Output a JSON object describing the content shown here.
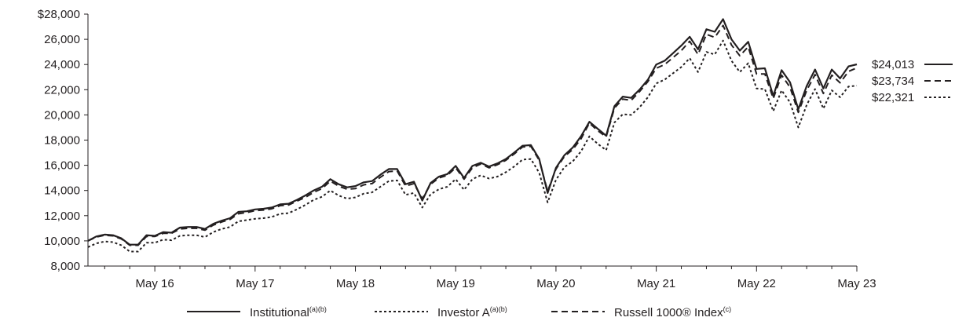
{
  "chart_data": {
    "type": "line",
    "title": "",
    "xlabel": "",
    "ylabel": "",
    "ylim": [
      8000,
      28000
    ],
    "y_ticks": [
      8000,
      10000,
      12000,
      14000,
      16000,
      18000,
      20000,
      22000,
      24000,
      26000,
      28000
    ],
    "y_tick_labels": [
      "8,000",
      "10,000",
      "12,000",
      "14,000",
      "16,000",
      "18,000",
      "20,000",
      "22,000",
      "24,000",
      "26,000",
      "$28,000"
    ],
    "x_tick_labels": [
      "May 16",
      "May 17",
      "May 18",
      "May 19",
      "May 20",
      "May 21",
      "May 22",
      "May 23"
    ],
    "x_tick_positions": [
      12,
      24,
      36,
      48,
      60,
      72,
      84,
      96
    ],
    "x_range_months": [
      4,
      96
    ],
    "grid": false,
    "legend_placement": "bottom",
    "series": [
      {
        "name": "Institutional",
        "legend_sup": "(a)(b)",
        "style": "solid",
        "end_label": "$24,013",
        "values": [
          [
            4,
            10000
          ],
          [
            5,
            10350
          ],
          [
            6,
            10500
          ],
          [
            7,
            10450
          ],
          [
            8,
            10200
          ],
          [
            9,
            9700
          ],
          [
            10,
            9700
          ],
          [
            11,
            10450
          ],
          [
            12,
            10400
          ],
          [
            13,
            10700
          ],
          [
            14,
            10650
          ],
          [
            15,
            11050
          ],
          [
            16,
            11100
          ],
          [
            17,
            11100
          ],
          [
            18,
            10950
          ],
          [
            19,
            11350
          ],
          [
            20,
            11600
          ],
          [
            21,
            11800
          ],
          [
            22,
            12300
          ],
          [
            23,
            12350
          ],
          [
            24,
            12500
          ],
          [
            25,
            12550
          ],
          [
            26,
            12650
          ],
          [
            27,
            12900
          ],
          [
            28,
            12950
          ],
          [
            29,
            13250
          ],
          [
            30,
            13600
          ],
          [
            31,
            14000
          ],
          [
            32,
            14300
          ],
          [
            33,
            14900
          ],
          [
            34,
            14500
          ],
          [
            35,
            14250
          ],
          [
            36,
            14350
          ],
          [
            37,
            14650
          ],
          [
            38,
            14750
          ],
          [
            39,
            15250
          ],
          [
            40,
            15700
          ],
          [
            41,
            15700
          ],
          [
            42,
            14500
          ],
          [
            43,
            14700
          ],
          [
            44,
            13200
          ],
          [
            45,
            14600
          ],
          [
            46,
            15100
          ],
          [
            47,
            15300
          ],
          [
            48,
            15950
          ],
          [
            49,
            15000
          ],
          [
            50,
            15950
          ],
          [
            51,
            16200
          ],
          [
            52,
            15900
          ],
          [
            53,
            16150
          ],
          [
            54,
            16500
          ],
          [
            55,
            17000
          ],
          [
            56,
            17550
          ],
          [
            57,
            17600
          ],
          [
            58,
            16500
          ],
          [
            59,
            13800
          ],
          [
            60,
            15800
          ],
          [
            61,
            16800
          ],
          [
            62,
            17400
          ],
          [
            63,
            18300
          ],
          [
            64,
            19450
          ],
          [
            65,
            18900
          ],
          [
            66,
            18350
          ],
          [
            67,
            20700
          ],
          [
            68,
            21450
          ],
          [
            69,
            21350
          ],
          [
            70,
            22000
          ],
          [
            71,
            22800
          ],
          [
            72,
            24000
          ],
          [
            73,
            24300
          ],
          [
            74,
            24900
          ],
          [
            75,
            25500
          ],
          [
            76,
            26200
          ],
          [
            77,
            25200
          ],
          [
            78,
            26800
          ],
          [
            79,
            26600
          ],
          [
            80,
            27600
          ],
          [
            81,
            26000
          ],
          [
            82,
            25100
          ],
          [
            83,
            25800
          ],
          [
            84,
            23650
          ],
          [
            85,
            23700
          ],
          [
            86,
            21500
          ],
          [
            87,
            23550
          ],
          [
            88,
            22600
          ],
          [
            89,
            20450
          ],
          [
            90,
            22300
          ],
          [
            91,
            23600
          ],
          [
            92,
            22100
          ],
          [
            93,
            23600
          ],
          [
            94,
            22900
          ],
          [
            95,
            23850
          ],
          [
            96,
            24013
          ]
        ]
      },
      {
        "name": "Investor A",
        "legend_sup": "(a)(b)",
        "style": "dotted",
        "end_label": "$22,321",
        "values": [
          [
            4,
            9500
          ],
          [
            5,
            9800
          ],
          [
            6,
            9950
          ],
          [
            7,
            9900
          ],
          [
            8,
            9650
          ],
          [
            9,
            9150
          ],
          [
            10,
            9150
          ],
          [
            11,
            9850
          ],
          [
            12,
            9850
          ],
          [
            13,
            10100
          ],
          [
            14,
            10050
          ],
          [
            15,
            10400
          ],
          [
            16,
            10450
          ],
          [
            17,
            10450
          ],
          [
            18,
            10300
          ],
          [
            19,
            10700
          ],
          [
            20,
            10950
          ],
          [
            21,
            11100
          ],
          [
            22,
            11550
          ],
          [
            23,
            11650
          ],
          [
            24,
            11750
          ],
          [
            25,
            11800
          ],
          [
            26,
            11900
          ],
          [
            27,
            12150
          ],
          [
            28,
            12200
          ],
          [
            29,
            12500
          ],
          [
            30,
            12850
          ],
          [
            31,
            13250
          ],
          [
            32,
            13500
          ],
          [
            33,
            14000
          ],
          [
            34,
            13600
          ],
          [
            35,
            13350
          ],
          [
            36,
            13450
          ],
          [
            37,
            13750
          ],
          [
            38,
            13850
          ],
          [
            39,
            14300
          ],
          [
            40,
            14750
          ],
          [
            41,
            14800
          ],
          [
            42,
            13650
          ],
          [
            43,
            13800
          ],
          [
            44,
            12650
          ],
          [
            45,
            13700
          ],
          [
            46,
            14100
          ],
          [
            47,
            14300
          ],
          [
            48,
            14900
          ],
          [
            49,
            14050
          ],
          [
            50,
            14900
          ],
          [
            51,
            15200
          ],
          [
            52,
            14950
          ],
          [
            53,
            15100
          ],
          [
            54,
            15450
          ],
          [
            55,
            15900
          ],
          [
            56,
            16450
          ],
          [
            57,
            16500
          ],
          [
            58,
            15400
          ],
          [
            59,
            13050
          ],
          [
            60,
            14850
          ],
          [
            61,
            15850
          ],
          [
            62,
            16300
          ],
          [
            63,
            17100
          ],
          [
            64,
            18300
          ],
          [
            65,
            17700
          ],
          [
            66,
            17200
          ],
          [
            67,
            19400
          ],
          [
            68,
            20050
          ],
          [
            69,
            20000
          ],
          [
            70,
            20600
          ],
          [
            71,
            21400
          ],
          [
            72,
            22500
          ],
          [
            73,
            22800
          ],
          [
            74,
            23300
          ],
          [
            75,
            23800
          ],
          [
            76,
            24500
          ],
          [
            77,
            23400
          ],
          [
            78,
            25000
          ],
          [
            79,
            24800
          ],
          [
            80,
            25900
          ],
          [
            81,
            24300
          ],
          [
            82,
            23400
          ],
          [
            83,
            24100
          ],
          [
            84,
            22100
          ],
          [
            85,
            22050
          ],
          [
            86,
            20300
          ],
          [
            87,
            21950
          ],
          [
            88,
            21000
          ],
          [
            89,
            19000
          ],
          [
            90,
            20800
          ],
          [
            91,
            22050
          ],
          [
            92,
            20500
          ],
          [
            93,
            21950
          ],
          [
            94,
            21400
          ],
          [
            95,
            22250
          ],
          [
            96,
            22321
          ]
        ]
      },
      {
        "name": "Russell 1000® Index",
        "legend_sup": "(c)",
        "style": "dashed",
        "end_label": "$23,734",
        "values": [
          [
            4,
            10000
          ],
          [
            5,
            10300
          ],
          [
            6,
            10450
          ],
          [
            7,
            10400
          ],
          [
            8,
            10150
          ],
          [
            9,
            9650
          ],
          [
            10,
            9650
          ],
          [
            11,
            10350
          ],
          [
            12,
            10350
          ],
          [
            13,
            10600
          ],
          [
            14,
            10600
          ],
          [
            15,
            10950
          ],
          [
            16,
            11000
          ],
          [
            17,
            11000
          ],
          [
            18,
            10850
          ],
          [
            19,
            11250
          ],
          [
            20,
            11500
          ],
          [
            21,
            11700
          ],
          [
            22,
            12150
          ],
          [
            23,
            12250
          ],
          [
            24,
            12400
          ],
          [
            25,
            12450
          ],
          [
            26,
            12550
          ],
          [
            27,
            12800
          ],
          [
            28,
            12850
          ],
          [
            29,
            13150
          ],
          [
            30,
            13450
          ],
          [
            31,
            13850
          ],
          [
            32,
            14150
          ],
          [
            33,
            14750
          ],
          [
            34,
            14350
          ],
          [
            35,
            14100
          ],
          [
            36,
            14150
          ],
          [
            37,
            14450
          ],
          [
            38,
            14550
          ],
          [
            39,
            15050
          ],
          [
            40,
            15500
          ],
          [
            41,
            15550
          ],
          [
            42,
            14350
          ],
          [
            43,
            14550
          ],
          [
            44,
            13350
          ],
          [
            45,
            14500
          ],
          [
            46,
            15000
          ],
          [
            47,
            15200
          ],
          [
            48,
            15800
          ],
          [
            49,
            14900
          ],
          [
            50,
            15800
          ],
          [
            51,
            16100
          ],
          [
            52,
            15800
          ],
          [
            53,
            16050
          ],
          [
            54,
            16400
          ],
          [
            55,
            16900
          ],
          [
            56,
            17450
          ],
          [
            57,
            17500
          ],
          [
            58,
            16400
          ],
          [
            59,
            13950
          ],
          [
            60,
            15700
          ],
          [
            61,
            16700
          ],
          [
            62,
            17250
          ],
          [
            63,
            18100
          ],
          [
            64,
            19350
          ],
          [
            65,
            18750
          ],
          [
            66,
            18250
          ],
          [
            67,
            20550
          ],
          [
            68,
            21250
          ],
          [
            69,
            21150
          ],
          [
            70,
            21850
          ],
          [
            71,
            22650
          ],
          [
            72,
            23700
          ],
          [
            73,
            24000
          ],
          [
            74,
            24550
          ],
          [
            75,
            25100
          ],
          [
            76,
            25850
          ],
          [
            77,
            24800
          ],
          [
            78,
            26400
          ],
          [
            79,
            26150
          ],
          [
            80,
            27100
          ],
          [
            81,
            25550
          ],
          [
            82,
            24700
          ],
          [
            83,
            25400
          ],
          [
            84,
            23250
          ],
          [
            85,
            23250
          ],
          [
            86,
            21300
          ],
          [
            87,
            23150
          ],
          [
            88,
            22200
          ],
          [
            89,
            20200
          ],
          [
            90,
            21950
          ],
          [
            91,
            23200
          ],
          [
            92,
            21700
          ],
          [
            93,
            23150
          ],
          [
            94,
            22550
          ],
          [
            95,
            23450
          ],
          [
            96,
            23734
          ]
        ]
      }
    ]
  }
}
